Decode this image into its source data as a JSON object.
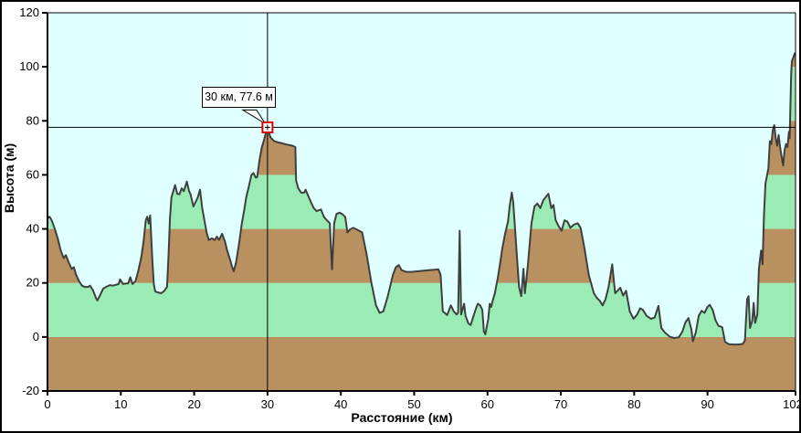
{
  "window": {
    "bg": "#FFFFFF",
    "border_color": "#000000"
  },
  "chart_data": {
    "type": "area",
    "title": "",
    "xlabel": "Расстояние  (км)",
    "ylabel": "Высота (м)",
    "xlim": [
      0,
      102
    ],
    "ylim": [
      -20,
      120
    ],
    "x_ticks": [
      0,
      10,
      20,
      30,
      40,
      50,
      60,
      70,
      80,
      90,
      102
    ],
    "y_ticks": [
      -20,
      0,
      20,
      40,
      60,
      80,
      100,
      120
    ],
    "grid": "off",
    "legend": "none",
    "plot_bg": "#E0FFFF",
    "line_color": "#3F3F3F",
    "axis_color": "#000000",
    "bands": [
      {
        "from": -20,
        "to": 0,
        "color": "#B9905F"
      },
      {
        "from": 0,
        "to": 20,
        "color": "#9AECB4"
      },
      {
        "from": 20,
        "to": 40,
        "color": "#B9905F"
      },
      {
        "from": 40,
        "to": 60,
        "color": "#9AECB4"
      },
      {
        "from": 60,
        "to": 80,
        "color": "#B9905F"
      },
      {
        "from": 80,
        "to": 100,
        "color": "#9AECB4"
      },
      {
        "from": 100,
        "to": 120,
        "color": "#B9905F"
      }
    ],
    "crosshair": {
      "x_km": 30,
      "y_m": 77.6,
      "color": "#000000"
    },
    "marker": {
      "x_km": 30,
      "y_m": 77.6,
      "stroke": "#D40000",
      "fill": "#FFFFFF"
    },
    "tooltip": {
      "text": "30 км, 77.6 м"
    },
    "series": [
      {
        "name": "elevation-profile",
        "points": [
          [
            0,
            44
          ],
          [
            0.3,
            44.5
          ],
          [
            0.6,
            43
          ],
          [
            1,
            40
          ],
          [
            1.4,
            36.5
          ],
          [
            1.8,
            32
          ],
          [
            2.2,
            29.2
          ],
          [
            2.5,
            30.3
          ],
          [
            2.9,
            27.5
          ],
          [
            3.3,
            25.2
          ],
          [
            3.6,
            25.8
          ],
          [
            3.9,
            23
          ],
          [
            4.3,
            20.7
          ],
          [
            4.7,
            19
          ],
          [
            5.1,
            18.5
          ],
          [
            5.5,
            18.5
          ],
          [
            5.8,
            19
          ],
          [
            6.2,
            17.3
          ],
          [
            6.6,
            14.5
          ],
          [
            6.8,
            13.5
          ],
          [
            7.2,
            15.6
          ],
          [
            7.6,
            17.9
          ],
          [
            8.1,
            18.7
          ],
          [
            8.5,
            19.2
          ],
          [
            8.9,
            19
          ],
          [
            9.3,
            19.3
          ],
          [
            9.7,
            19.6
          ],
          [
            9.9,
            21.3
          ],
          [
            10.3,
            19.6
          ],
          [
            10.7,
            19.8
          ],
          [
            11,
            19.8
          ],
          [
            11.3,
            22.1
          ],
          [
            11.6,
            19.6
          ],
          [
            12,
            20.7
          ],
          [
            12.4,
            24.7
          ],
          [
            12.8,
            29.7
          ],
          [
            13.1,
            35.4
          ],
          [
            13.4,
            43.2
          ],
          [
            13.6,
            44.5
          ],
          [
            13.8,
            42
          ],
          [
            14,
            45
          ],
          [
            14.3,
            28.6
          ],
          [
            14.5,
            19.6
          ],
          [
            14.7,
            16.8
          ],
          [
            15.1,
            16.5
          ],
          [
            15.5,
            16.2
          ],
          [
            15.9,
            17
          ],
          [
            16.3,
            18.5
          ],
          [
            16.5,
            30
          ],
          [
            16.7,
            44
          ],
          [
            16.9,
            51.7
          ],
          [
            17.1,
            53.5
          ],
          [
            17.4,
            56.2
          ],
          [
            17.7,
            53
          ],
          [
            18,
            52.8
          ],
          [
            18.3,
            55
          ],
          [
            18.6,
            54
          ],
          [
            19,
            57.5
          ],
          [
            19.3,
            54
          ],
          [
            19.5,
            52.8
          ],
          [
            19.9,
            48.3
          ],
          [
            20.2,
            50
          ],
          [
            20.5,
            51.7
          ],
          [
            20.8,
            54.5
          ],
          [
            21.1,
            47.7
          ],
          [
            21.4,
            43.2
          ],
          [
            21.7,
            38.7
          ],
          [
            22,
            35.9
          ],
          [
            22.4,
            36.5
          ],
          [
            22.8,
            35.9
          ],
          [
            23.1,
            37.1
          ],
          [
            23.4,
            35.9
          ],
          [
            23.8,
            38.2
          ],
          [
            24.2,
            35.4
          ],
          [
            24.5,
            32
          ],
          [
            24.9,
            28.6
          ],
          [
            25.2,
            25.8
          ],
          [
            25.4,
            24.3
          ],
          [
            25.7,
            27.5
          ],
          [
            26.1,
            34.2
          ],
          [
            26.5,
            42.1
          ],
          [
            26.8,
            46.6
          ],
          [
            27.1,
            51.7
          ],
          [
            27.5,
            56.2
          ],
          [
            27.8,
            59.9
          ],
          [
            28.1,
            60.7
          ],
          [
            28.4,
            59
          ],
          [
            28.6,
            59.2
          ],
          [
            28.9,
            65.2
          ],
          [
            29.2,
            70
          ],
          [
            29.6,
            73.6
          ],
          [
            29.8,
            75.9
          ],
          [
            30,
            77.6
          ],
          [
            30.4,
            73.9
          ],
          [
            30.9,
            72.5
          ],
          [
            31.5,
            72
          ],
          [
            32.1,
            71.6
          ],
          [
            32.7,
            71.2
          ],
          [
            33.4,
            70.8
          ],
          [
            33.8,
            70.3
          ],
          [
            33.9,
            57.9
          ],
          [
            34.2,
            55
          ],
          [
            34.6,
            53.4
          ],
          [
            35,
            53.4
          ],
          [
            35.2,
            54.5
          ],
          [
            35.6,
            52
          ],
          [
            35.9,
            50
          ],
          [
            36.3,
            47.7
          ],
          [
            36.7,
            46.6
          ],
          [
            37.3,
            47.2
          ],
          [
            37.7,
            44.4
          ],
          [
            38.1,
            43.2
          ],
          [
            38.5,
            42.1
          ],
          [
            38.8,
            25
          ],
          [
            39.1,
            42.1
          ],
          [
            39.4,
            45.5
          ],
          [
            39.8,
            46
          ],
          [
            40.2,
            45.5
          ],
          [
            40.6,
            44.4
          ],
          [
            40.9,
            38.7
          ],
          [
            41.3,
            39.9
          ],
          [
            41.7,
            40.4
          ],
          [
            42.1,
            39.9
          ],
          [
            42.5,
            39.3
          ],
          [
            42.9,
            38.7
          ],
          [
            43.5,
            30.8
          ],
          [
            44.2,
            19.6
          ],
          [
            44.8,
            11.7
          ],
          [
            45.3,
            8.9
          ],
          [
            45.8,
            9.5
          ],
          [
            46.4,
            15.1
          ],
          [
            47.1,
            23
          ],
          [
            47.5,
            25.8
          ],
          [
            47.9,
            26.6
          ],
          [
            48.3,
            24.7
          ],
          [
            48.9,
            24.1
          ],
          [
            49.6,
            24.1
          ],
          [
            50.4,
            24.3
          ],
          [
            51.2,
            24.5
          ],
          [
            52,
            24.7
          ],
          [
            52.8,
            24.9
          ],
          [
            53.3,
            25
          ],
          [
            53.6,
            23
          ],
          [
            53.9,
            9.5
          ],
          [
            54.5,
            8.1
          ],
          [
            55,
            11.7
          ],
          [
            55.4,
            9.5
          ],
          [
            55.8,
            8.3
          ],
          [
            56,
            9
          ],
          [
            56.2,
            39.3
          ],
          [
            56.4,
            8.3
          ],
          [
            56.8,
            12.3
          ],
          [
            57,
            7.8
          ],
          [
            57.4,
            5
          ],
          [
            57.7,
            4.4
          ],
          [
            58.1,
            7.8
          ],
          [
            58.5,
            11.1
          ],
          [
            58.7,
            12.3
          ],
          [
            59,
            11.7
          ],
          [
            59.3,
            10
          ],
          [
            59.5,
            2
          ],
          [
            59.7,
            1
          ],
          [
            60.1,
            6.7
          ],
          [
            60.3,
            12.3
          ],
          [
            60.5,
            11.1
          ],
          [
            60.7,
            13.4
          ],
          [
            61,
            16.2
          ],
          [
            61.2,
            19
          ],
          [
            61.4,
            21.8
          ],
          [
            61.7,
            26.9
          ],
          [
            62,
            32.5
          ],
          [
            62.4,
            38.2
          ],
          [
            62.8,
            42.7
          ],
          [
            63,
            48
          ],
          [
            63.3,
            53.5
          ],
          [
            63.5,
            50
          ],
          [
            63.9,
            34.2
          ],
          [
            64.3,
            18.5
          ],
          [
            64.6,
            15.1
          ],
          [
            64.9,
            25.2
          ],
          [
            65.1,
            16.2
          ],
          [
            65.5,
            26.4
          ],
          [
            66,
            42.1
          ],
          [
            66.4,
            48.3
          ],
          [
            66.8,
            49.4
          ],
          [
            67.2,
            47.7
          ],
          [
            67.6,
            50.6
          ],
          [
            68,
            52
          ],
          [
            68.3,
            53
          ],
          [
            68.7,
            47.7
          ],
          [
            69,
            48.9
          ],
          [
            69.3,
            43.2
          ],
          [
            69.7,
            41
          ],
          [
            70.1,
            39.3
          ],
          [
            70.5,
            43.2
          ],
          [
            70.9,
            42.7
          ],
          [
            71.3,
            40.4
          ],
          [
            71.8,
            41.6
          ],
          [
            72.3,
            42.1
          ],
          [
            72.7,
            40.4
          ],
          [
            73.2,
            33.1
          ],
          [
            73.8,
            23
          ],
          [
            74.5,
            16.2
          ],
          [
            74.9,
            14.5
          ],
          [
            75.3,
            13.4
          ],
          [
            75.7,
            11.7
          ],
          [
            76.1,
            14
          ],
          [
            76.5,
            18.5
          ],
          [
            77,
            26.9
          ],
          [
            77.4,
            16.2
          ],
          [
            77.8,
            17.3
          ],
          [
            78.1,
            18.2
          ],
          [
            78.5,
            15.3
          ],
          [
            78.9,
            17.1
          ],
          [
            79.4,
            9.5
          ],
          [
            79.9,
            6.7
          ],
          [
            80.4,
            8.3
          ],
          [
            80.8,
            10.6
          ],
          [
            81.2,
            10
          ],
          [
            81.7,
            7.8
          ],
          [
            82.3,
            6.7
          ],
          [
            82.8,
            7.2
          ],
          [
            83.3,
            11.5
          ],
          [
            83.7,
            3.3
          ],
          [
            84.2,
            1.6
          ],
          [
            84.9,
            0
          ],
          [
            85.5,
            -0.4
          ],
          [
            86.1,
            -0.1
          ],
          [
            86.6,
            2.1
          ],
          [
            87,
            5.5
          ],
          [
            87.4,
            7
          ],
          [
            87.8,
            2.7
          ],
          [
            88,
            -1.6
          ],
          [
            88.4,
            1.6
          ],
          [
            88.8,
            7.8
          ],
          [
            89.2,
            9.7
          ],
          [
            89.6,
            8.9
          ],
          [
            90,
            11.1
          ],
          [
            90.3,
            11.9
          ],
          [
            90.7,
            10
          ],
          [
            91.1,
            6.1
          ],
          [
            91.5,
            4.1
          ],
          [
            92,
            3.6
          ],
          [
            92.4,
            -1.8
          ],
          [
            92.9,
            -2.7
          ],
          [
            93.5,
            -2.8
          ],
          [
            94.2,
            -2.8
          ],
          [
            94.8,
            -2.6
          ],
          [
            95.1,
            -1.3
          ],
          [
            95.4,
            14
          ],
          [
            95.6,
            15.1
          ],
          [
            95.8,
            3.3
          ],
          [
            96.1,
            6
          ],
          [
            96.3,
            12.6
          ],
          [
            96.5,
            5.2
          ],
          [
            96.8,
            8.3
          ],
          [
            97,
            25.2
          ],
          [
            97.3,
            32
          ],
          [
            97.5,
            26.9
          ],
          [
            97.7,
            45.5
          ],
          [
            97.9,
            56.8
          ],
          [
            98.1,
            59.6
          ],
          [
            98.3,
            62.4
          ],
          [
            98.5,
            72.5
          ],
          [
            98.7,
            71.4
          ],
          [
            98.9,
            76.5
          ],
          [
            99.1,
            78.4
          ],
          [
            99.3,
            73.6
          ],
          [
            99.5,
            70.8
          ],
          [
            99.7,
            74.8
          ],
          [
            99.9,
            70.3
          ],
          [
            100.1,
            66.9
          ],
          [
            100.3,
            63.5
          ],
          [
            100.5,
            69.1
          ],
          [
            100.7,
            71.4
          ],
          [
            100.9,
            70.3
          ],
          [
            101.1,
            75.9
          ],
          [
            101.2,
            73.6
          ],
          [
            101.4,
            97
          ],
          [
            101.5,
            102
          ],
          [
            101.7,
            103.5
          ],
          [
            101.9,
            105
          ],
          [
            102,
            104.5
          ]
        ]
      }
    ]
  }
}
